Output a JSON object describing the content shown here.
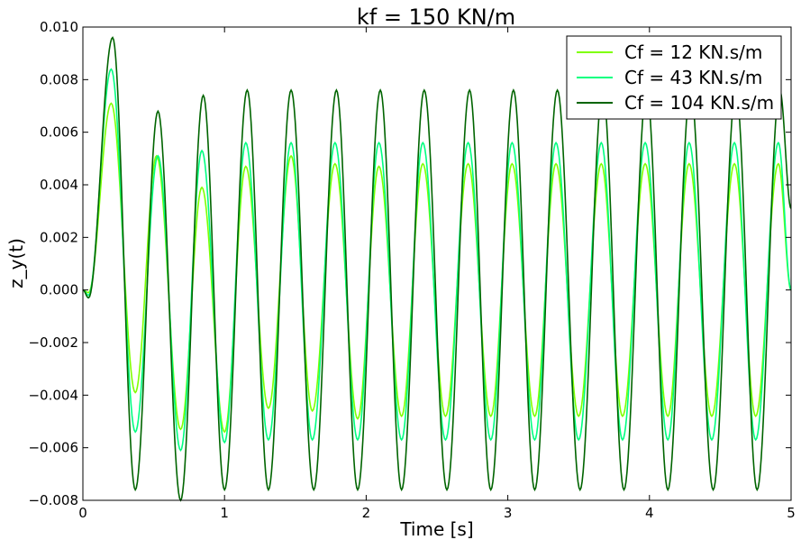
{
  "chart_data": {
    "type": "line",
    "title": "kf = 150 KN/m",
    "xlabel": "Time [s]",
    "ylabel": "z_y(t)",
    "xlim": [
      0,
      5
    ],
    "ylim": [
      -0.008,
      0.01
    ],
    "grid": false,
    "legend_position": "top-right",
    "x_ticks": [
      0,
      1,
      2,
      3,
      4,
      5
    ],
    "x_tick_labels": [
      "0",
      "1",
      "2",
      "3",
      "4",
      "5"
    ],
    "y_ticks": [
      -0.008,
      -0.006,
      -0.004,
      -0.002,
      0.0,
      0.002,
      0.004,
      0.006,
      0.008,
      0.01
    ],
    "y_tick_labels": [
      "−0.008",
      "−0.006",
      "−0.004",
      "−0.002",
      "0.000",
      "0.002",
      "0.004",
      "0.006",
      "0.008",
      "0.010"
    ],
    "series": [
      {
        "name": "Cf = 12 KN.s/m",
        "color": "#7fff00",
        "steady_period": 0.3125,
        "x": [
          0,
          0.04,
          0.2,
          0.37,
          0.52,
          0.69,
          0.84,
          1.0,
          1.15,
          1.31,
          1.47,
          1.62,
          1.78,
          1.94,
          2.09,
          2.25,
          2.4,
          2.56,
          2.72,
          2.88,
          3.03,
          3.19,
          3.34,
          3.5,
          3.66,
          3.81,
          3.97,
          4.13,
          4.28,
          4.44,
          4.6,
          4.75,
          4.91,
          5.0
        ],
        "y": [
          0.0,
          -0.0001,
          0.0071,
          -0.0039,
          0.0051,
          -0.0053,
          0.0039,
          -0.0054,
          0.0047,
          -0.0045,
          0.0051,
          -0.0046,
          0.0048,
          -0.0049,
          0.0047,
          -0.0048,
          0.0048,
          -0.0048,
          0.0048,
          -0.0048,
          0.0048,
          -0.0048,
          0.0048,
          -0.0048,
          0.0048,
          -0.0048,
          0.0048,
          -0.0048,
          0.0048,
          -0.0048,
          0.0048,
          -0.0048,
          0.0048,
          0.0
        ]
      },
      {
        "name": "Cf = 43 KN.s/m",
        "color": "#00ff80",
        "steady_period": 0.3125,
        "x": [
          0,
          0.04,
          0.2,
          0.37,
          0.53,
          0.69,
          0.84,
          1.0,
          1.15,
          1.31,
          1.47,
          1.62,
          1.78,
          1.94,
          2.09,
          2.25,
          2.4,
          2.56,
          2.72,
          2.88,
          3.03,
          3.19,
          3.34,
          3.5,
          3.66,
          3.81,
          3.97,
          4.13,
          4.28,
          4.44,
          4.6,
          4.75,
          4.91,
          5.0
        ],
        "y": [
          0.0,
          -0.0002,
          0.0084,
          -0.0054,
          0.0051,
          -0.0061,
          0.0053,
          -0.0058,
          0.0056,
          -0.0057,
          0.0056,
          -0.0057,
          0.0056,
          -0.0057,
          0.0056,
          -0.0057,
          0.0056,
          -0.0057,
          0.0056,
          -0.0057,
          0.0056,
          -0.0057,
          0.0056,
          -0.0057,
          0.0056,
          -0.0057,
          0.0056,
          -0.0057,
          0.0056,
          -0.0057,
          0.0056,
          -0.0057,
          0.0056,
          0.0
        ]
      },
      {
        "name": "Cf = 104 KN.s/m",
        "color": "#006400",
        "steady_period": 0.3125,
        "x": [
          0,
          0.04,
          0.21,
          0.37,
          0.53,
          0.69,
          0.85,
          1.0,
          1.16,
          1.31,
          1.47,
          1.63,
          1.79,
          1.94,
          2.1,
          2.25,
          2.41,
          2.57,
          2.73,
          2.88,
          3.04,
          3.19,
          3.35,
          3.51,
          3.67,
          3.82,
          3.98,
          4.13,
          4.29,
          4.45,
          4.61,
          4.76,
          4.92,
          5.0
        ],
        "y": [
          0.0,
          -0.0003,
          0.0096,
          -0.0076,
          0.0068,
          -0.008,
          0.0074,
          -0.0076,
          0.0076,
          -0.0076,
          0.0076,
          -0.0076,
          0.0076,
          -0.0076,
          0.0076,
          -0.0076,
          0.0076,
          -0.0076,
          0.0076,
          -0.0076,
          0.0076,
          -0.0076,
          0.0076,
          -0.0076,
          0.0076,
          -0.0076,
          0.0076,
          -0.0076,
          0.0076,
          -0.0076,
          0.0076,
          -0.0076,
          0.0076,
          0.0031
        ]
      }
    ]
  }
}
